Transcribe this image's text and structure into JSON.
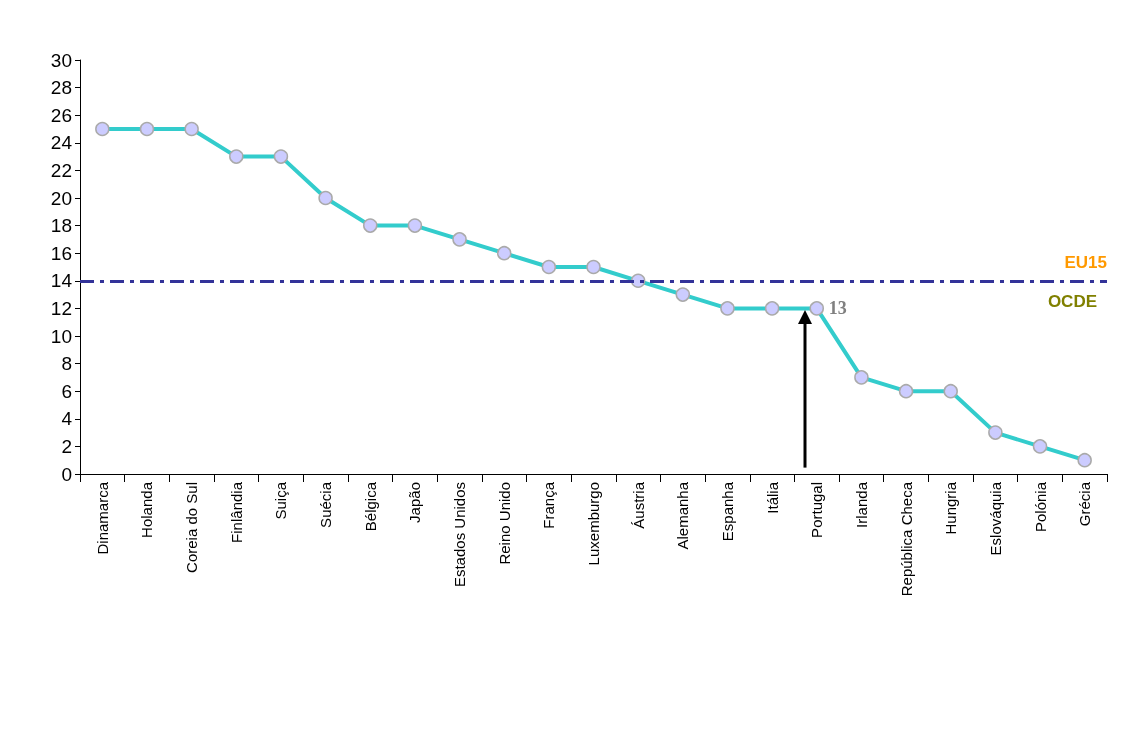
{
  "chart_data": {
    "type": "line",
    "categories": [
      "Dinamarca",
      "Holanda",
      "Coreia do Sul",
      "Finlândia",
      "Suiça",
      "Suécia",
      "Bélgica",
      "Japão",
      "Estados Unidos",
      "Reino Unido",
      "França",
      "Luxemburgo",
      "Áustria",
      "Alemanha",
      "Espanha",
      "Itália",
      "Portugal",
      "Irlanda",
      "República Checa",
      "Hungria",
      "Eslováquia",
      "Polónia",
      "Grécia"
    ],
    "series": [
      {
        "color": "#33cccc",
        "values": [
          25,
          25,
          25,
          23,
          23,
          20,
          18,
          18,
          17,
          16,
          15,
          15,
          14,
          13,
          12,
          12,
          12,
          7,
          6,
          6,
          3,
          2,
          1
        ]
      }
    ],
    "ylim": [
      0,
      30
    ],
    "yticks": [
      0,
      2,
      4,
      6,
      8,
      10,
      12,
      14,
      16,
      18,
      20,
      22,
      24,
      26,
      28,
      30
    ],
    "ref_lines": [
      {
        "axis": "y",
        "value": 14,
        "label": "EU15",
        "color": "#333399",
        "line_style": "dashed"
      }
    ],
    "annotations": [
      {
        "text": "13",
        "x": "Portugal",
        "y": 12
      },
      "OCDE"
    ],
    "marker": "circle",
    "line_style": "solid",
    "grid": false
  }
}
